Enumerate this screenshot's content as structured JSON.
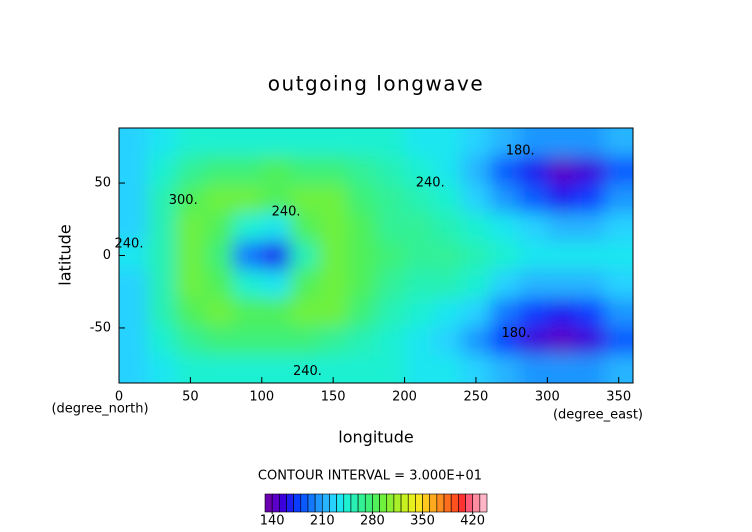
{
  "chart_data": {
    "type": "contour",
    "title": "outgoing longwave",
    "xlabel": "longitude",
    "ylabel": "latitude",
    "x_unit": "(degree_east)",
    "y_unit": "(degree_north)",
    "note": "CONTOUR INTERVAL = 3.000E+01",
    "xlim": [
      0,
      360
    ],
    "xticks": [
      0,
      50,
      100,
      150,
      200,
      250,
      300,
      350
    ],
    "ylim": [
      -88,
      88
    ],
    "yticks": [
      -50,
      0,
      50
    ],
    "lon": [
      10,
      30,
      50,
      70,
      90,
      110,
      130,
      150,
      170,
      190,
      210,
      230,
      250,
      270,
      290,
      310,
      330,
      350
    ],
    "lat": [
      78,
      59,
      39,
      20,
      0,
      -20,
      -39,
      -59,
      -78
    ],
    "z": [
      [
        225,
        232,
        240,
        245,
        245,
        245,
        245,
        245,
        242,
        240,
        238,
        235,
        228,
        215,
        205,
        200,
        205,
        215
      ],
      [
        222,
        245,
        265,
        275,
        278,
        280,
        278,
        270,
        260,
        250,
        240,
        230,
        210,
        180,
        160,
        145,
        150,
        185
      ],
      [
        220,
        250,
        285,
        295,
        290,
        285,
        290,
        290,
        275,
        262,
        252,
        242,
        225,
        200,
        180,
        165,
        170,
        200
      ],
      [
        225,
        255,
        290,
        285,
        240,
        230,
        280,
        295,
        280,
        268,
        262,
        255,
        245,
        232,
        222,
        215,
        215,
        225
      ],
      [
        230,
        258,
        292,
        270,
        190,
        165,
        250,
        293,
        282,
        270,
        268,
        265,
        258,
        245,
        235,
        230,
        230,
        232
      ],
      [
        225,
        255,
        290,
        285,
        240,
        230,
        280,
        295,
        280,
        265,
        258,
        250,
        240,
        228,
        218,
        212,
        212,
        222
      ],
      [
        220,
        250,
        282,
        292,
        288,
        285,
        290,
        290,
        272,
        258,
        248,
        238,
        222,
        198,
        178,
        165,
        170,
        200
      ],
      [
        222,
        245,
        262,
        272,
        276,
        278,
        276,
        268,
        258,
        248,
        238,
        228,
        208,
        178,
        158,
        145,
        150,
        185
      ],
      [
        225,
        232,
        240,
        245,
        245,
        245,
        245,
        245,
        242,
        240,
        238,
        235,
        228,
        215,
        205,
        200,
        205,
        215
      ]
    ],
    "clim": [
      130,
      440
    ],
    "level_step": 10,
    "cticks": [
      140,
      210,
      280,
      350,
      420
    ],
    "colors": [
      "#6a00b0",
      "#5a00c8",
      "#3c00dc",
      "#1e1ef0",
      "#0a3cff",
      "#0a5aff",
      "#1478ff",
      "#1e96ff",
      "#28b4ff",
      "#28d2ff",
      "#1ee6f0",
      "#1ef0d2",
      "#28f0b4",
      "#32f096",
      "#3cf078",
      "#50f05a",
      "#6ef03c",
      "#8cf032",
      "#aaf028",
      "#c8f01e",
      "#e6f01e",
      "#fae61e",
      "#ffc81e",
      "#ffaa1e",
      "#ff8c1e",
      "#ff6e1e",
      "#ff501e",
      "#ff3232",
      "#ff5a78",
      "#ff8ca0",
      "#ffb4c8"
    ],
    "contour_labels": [
      {
        "text": "300.",
        "lon": 45,
        "lat": 38
      },
      {
        "text": "240.",
        "lon": 117,
        "lat": 30
      },
      {
        "text": "240.",
        "lon": 7,
        "lat": 8
      },
      {
        "text": "240.",
        "lon": 218,
        "lat": 50
      },
      {
        "text": "240.",
        "lon": 132,
        "lat": -80
      },
      {
        "text": "180.",
        "lon": 281,
        "lat": 72
      },
      {
        "text": "180.",
        "lon": 278,
        "lat": -54
      }
    ]
  }
}
